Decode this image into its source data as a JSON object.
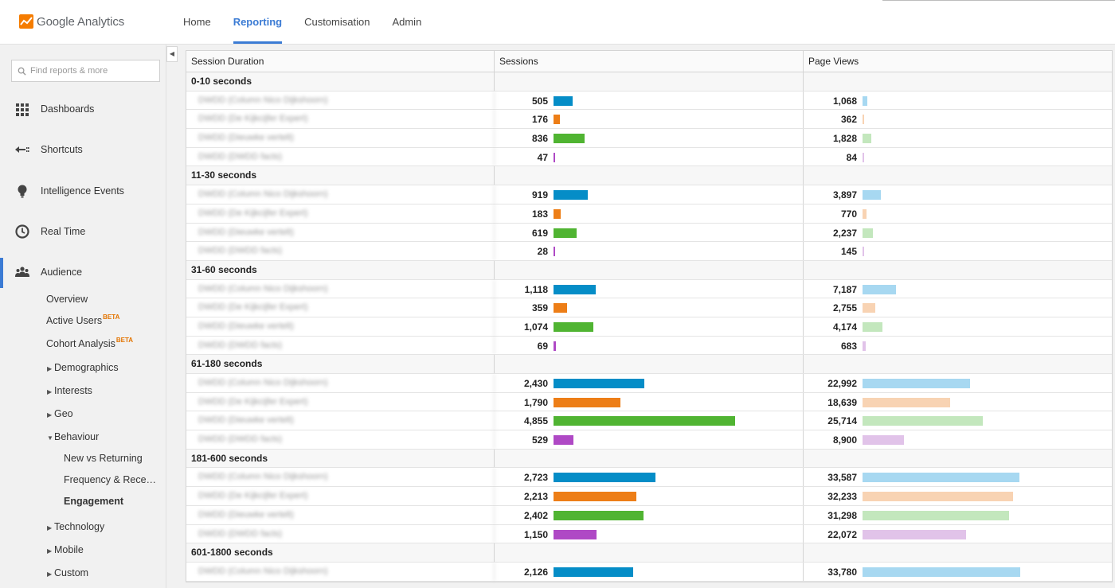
{
  "app": {
    "name": "Google Analytics"
  },
  "topnav": [
    {
      "label": "Home",
      "active": false
    },
    {
      "label": "Reporting",
      "active": true
    },
    {
      "label": "Customisation",
      "active": false
    },
    {
      "label": "Admin",
      "active": false
    }
  ],
  "search": {
    "placeholder": "Find reports & more"
  },
  "sidebar": {
    "main": [
      {
        "label": "Dashboards",
        "icon": "dashboards-icon"
      },
      {
        "label": "Shortcuts",
        "icon": "shortcuts-icon"
      },
      {
        "label": "Intelligence Events",
        "icon": "lightbulb-icon"
      },
      {
        "label": "Real Time",
        "icon": "clock-icon"
      },
      {
        "label": "Audience",
        "icon": "people-icon"
      }
    ],
    "audience_items": {
      "overview": "Overview",
      "active_users": "Active Users",
      "cohort": "Cohort Analysis",
      "beta": "BETA",
      "demographics": "Demographics",
      "interests": "Interests",
      "geo": "Geo",
      "behaviour": "Behaviour",
      "new_vs_returning": "New vs Returning",
      "frequency": "Frequency & Rece…",
      "engagement": "Engagement",
      "technology": "Technology",
      "mobile": "Mobile",
      "custom": "Custom"
    }
  },
  "colors": {
    "accent": "#3b7bd4",
    "series": [
      "#058dc7",
      "#ed7e17",
      "#50b432",
      "#af49c5"
    ],
    "series_light": [
      "#a7d8f1",
      "#f8d3b3",
      "#c3e7bd",
      "#e1c3e9"
    ]
  },
  "table": {
    "headers": {
      "duration": "Session Duration",
      "sessions": "Sessions",
      "pageviews": "Page Views"
    },
    "max_sessions": 5000,
    "max_pageviews": 40000,
    "groups": [
      {
        "label": "0-10 seconds",
        "rows": [
          {
            "name": "DWDD (Column Nico Dijkshoorn)",
            "sessions": "505",
            "sv": 505,
            "pageviews": "1,068",
            "pv": 1068
          },
          {
            "name": "DWDD (De Kijkcijfer Expert)",
            "sessions": "176",
            "sv": 176,
            "pageviews": "362",
            "pv": 362
          },
          {
            "name": "DWDD (Dieuwke vertelt)",
            "sessions": "836",
            "sv": 836,
            "pageviews": "1,828",
            "pv": 1828
          },
          {
            "name": "DWDD (DWDD facts)",
            "sessions": "47",
            "sv": 47,
            "pageviews": "84",
            "pv": 84
          }
        ]
      },
      {
        "label": "11-30 seconds",
        "rows": [
          {
            "name": "DWDD (Column Nico Dijkshoorn)",
            "sessions": "919",
            "sv": 919,
            "pageviews": "3,897",
            "pv": 3897
          },
          {
            "name": "DWDD (De Kijkcijfer Expert)",
            "sessions": "183",
            "sv": 183,
            "pageviews": "770",
            "pv": 770
          },
          {
            "name": "DWDD (Dieuwke vertelt)",
            "sessions": "619",
            "sv": 619,
            "pageviews": "2,237",
            "pv": 2237
          },
          {
            "name": "DWDD (DWDD facts)",
            "sessions": "28",
            "sv": 28,
            "pageviews": "145",
            "pv": 145
          }
        ]
      },
      {
        "label": "31-60 seconds",
        "rows": [
          {
            "name": "DWDD (Column Nico Dijkshoorn)",
            "sessions": "1,118",
            "sv": 1118,
            "pageviews": "7,187",
            "pv": 7187
          },
          {
            "name": "DWDD (De Kijkcijfer Expert)",
            "sessions": "359",
            "sv": 359,
            "pageviews": "2,755",
            "pv": 2755
          },
          {
            "name": "DWDD (Dieuwke vertelt)",
            "sessions": "1,074",
            "sv": 1074,
            "pageviews": "4,174",
            "pv": 4174
          },
          {
            "name": "DWDD (DWDD facts)",
            "sessions": "69",
            "sv": 69,
            "pageviews": "683",
            "pv": 683
          }
        ]
      },
      {
        "label": "61-180 seconds",
        "rows": [
          {
            "name": "DWDD (Column Nico Dijkshoorn)",
            "sessions": "2,430",
            "sv": 2430,
            "pageviews": "22,992",
            "pv": 22992
          },
          {
            "name": "DWDD (De Kijkcijfer Expert)",
            "sessions": "1,790",
            "sv": 1790,
            "pageviews": "18,639",
            "pv": 18639
          },
          {
            "name": "DWDD (Dieuwke vertelt)",
            "sessions": "4,855",
            "sv": 4855,
            "pageviews": "25,714",
            "pv": 25714
          },
          {
            "name": "DWDD (DWDD facts)",
            "sessions": "529",
            "sv": 529,
            "pageviews": "8,900",
            "pv": 8900
          }
        ]
      },
      {
        "label": "181-600 seconds",
        "rows": [
          {
            "name": "DWDD (Column Nico Dijkshoorn)",
            "sessions": "2,723",
            "sv": 2723,
            "pageviews": "33,587",
            "pv": 33587
          },
          {
            "name": "DWDD (De Kijkcijfer Expert)",
            "sessions": "2,213",
            "sv": 2213,
            "pageviews": "32,233",
            "pv": 32233
          },
          {
            "name": "DWDD (Dieuwke vertelt)",
            "sessions": "2,402",
            "sv": 2402,
            "pageviews": "31,298",
            "pv": 31298
          },
          {
            "name": "DWDD (DWDD facts)",
            "sessions": "1,150",
            "sv": 1150,
            "pageviews": "22,072",
            "pv": 22072
          }
        ]
      },
      {
        "label": "601-1800 seconds",
        "rows": [
          {
            "name": "DWDD (Column Nico Dijkshoorn)",
            "sessions": "2,126",
            "sv": 2126,
            "pageviews": "33,780",
            "pv": 33780
          }
        ]
      }
    ]
  }
}
